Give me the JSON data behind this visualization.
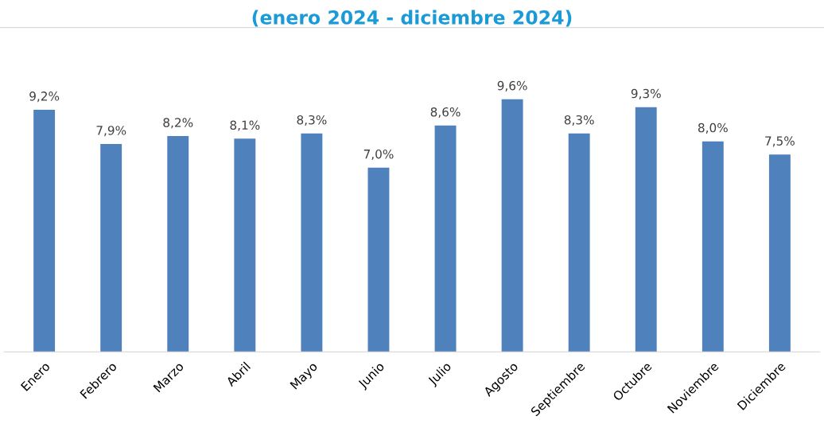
{
  "chart_data": {
    "type": "bar",
    "title": "(enero 2024 - diciembre 2024)",
    "categories": [
      "Enero",
      "Febrero",
      "Marzo",
      "Abril",
      "Mayo",
      "Junio",
      "Julio",
      "Agosto",
      "Septiembre",
      "Octubre",
      "Noviembre",
      "Diciembre"
    ],
    "values": [
      9.2,
      7.9,
      8.2,
      8.1,
      8.3,
      7.0,
      8.6,
      9.6,
      8.3,
      9.3,
      8.0,
      7.5
    ],
    "value_labels": [
      "9,2%",
      "7,9%",
      "8,2%",
      "8,1%",
      "8,3%",
      "7,0%",
      "8,6%",
      "9,6%",
      "8,3%",
      "9,3%",
      "8,0%",
      "7,5%"
    ],
    "color": "#4f81bd",
    "grid": false,
    "legend": false
  }
}
